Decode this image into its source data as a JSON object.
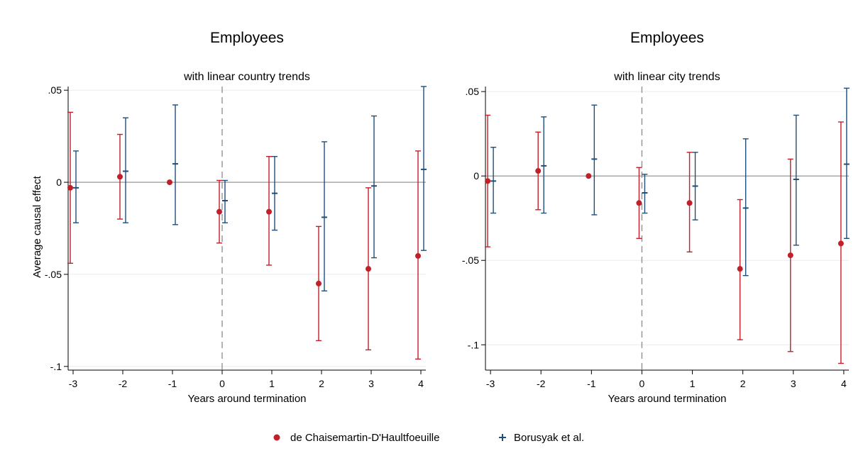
{
  "legend": {
    "position": "bottom",
    "entries": [
      {
        "label": "de Chaisemartin-D'Haultfoeuille",
        "color": "#c0202a",
        "marker": "dot"
      },
      {
        "label": "Borusyak et al.",
        "color": "#1f4e79",
        "marker": "plus"
      }
    ]
  },
  "chart_data": [
    {
      "type": "scatter",
      "title": "Employees",
      "subtitle": "with linear country trends",
      "xlabel": "Years around termination",
      "ylabel": "Average causal effect",
      "x": [
        -3,
        -2,
        -1,
        0,
        1,
        2,
        3,
        4
      ],
      "xlim": [
        -3.1,
        4.1
      ],
      "ylim": [
        -0.102,
        0.052
      ],
      "yticks": [
        {
          "v": 0.05,
          "label": ".05"
        },
        {
          "v": 0,
          "label": "0"
        },
        {
          "v": -0.05,
          "label": "-.05"
        },
        {
          "v": -0.1,
          "label": "-.1"
        }
      ],
      "xticks": [
        {
          "v": -3,
          "label": "-3"
        },
        {
          "v": -2,
          "label": "-2"
        },
        {
          "v": -1,
          "label": "-1"
        },
        {
          "v": 0,
          "label": "0"
        },
        {
          "v": 1,
          "label": "1"
        },
        {
          "v": 2,
          "label": "2"
        },
        {
          "v": 3,
          "label": "3"
        },
        {
          "v": 4,
          "label": "4"
        }
      ],
      "grid": true,
      "vline_x": 0,
      "series": [
        {
          "name": "de Chaisemartin-D'Haultfoeuille",
          "color": "#c0202a",
          "values": [
            -0.003,
            0.003,
            0.0,
            -0.016,
            -0.016,
            -0.055,
            -0.047,
            -0.04
          ],
          "lower": [
            -0.044,
            -0.02,
            null,
            -0.033,
            -0.045,
            -0.086,
            -0.091,
            -0.096
          ],
          "upper": [
            0.038,
            0.026,
            null,
            0.001,
            0.014,
            -0.024,
            -0.003,
            0.017
          ]
        },
        {
          "name": "Borusyak et al.",
          "color": "#1f4e79",
          "values": [
            -0.003,
            0.006,
            0.01,
            -0.01,
            -0.006,
            -0.019,
            -0.002,
            0.007
          ],
          "lower": [
            -0.022,
            -0.022,
            -0.023,
            -0.022,
            -0.026,
            -0.059,
            -0.041,
            -0.037
          ],
          "upper": [
            0.017,
            0.035,
            0.042,
            0.001,
            0.014,
            0.022,
            0.036,
            0.052
          ]
        }
      ]
    },
    {
      "type": "scatter",
      "title": "Employees",
      "subtitle": "with linear city trends",
      "xlabel": "Years around termination",
      "ylabel": "",
      "x": [
        -3,
        -2,
        -1,
        0,
        1,
        2,
        3,
        4
      ],
      "xlim": [
        -3.1,
        4.1
      ],
      "ylim": [
        -0.115,
        0.053
      ],
      "yticks": [
        {
          "v": 0.05,
          "label": ".05"
        },
        {
          "v": 0,
          "label": "0"
        },
        {
          "v": -0.05,
          "label": "-.05"
        },
        {
          "v": -0.1,
          "label": "-.1"
        }
      ],
      "xticks": [
        {
          "v": -3,
          "label": "-3"
        },
        {
          "v": -2,
          "label": "-2"
        },
        {
          "v": -1,
          "label": "-1"
        },
        {
          "v": 0,
          "label": "0"
        },
        {
          "v": 1,
          "label": "1"
        },
        {
          "v": 2,
          "label": "2"
        },
        {
          "v": 3,
          "label": "3"
        },
        {
          "v": 4,
          "label": "4"
        }
      ],
      "grid": true,
      "vline_x": 0,
      "series": [
        {
          "name": "de Chaisemartin-D'Haultfoeuille",
          "color": "#c0202a",
          "values": [
            -0.003,
            0.003,
            0.0,
            -0.016,
            -0.016,
            -0.055,
            -0.047,
            -0.04
          ],
          "lower": [
            -0.042,
            -0.02,
            null,
            -0.037,
            -0.045,
            -0.097,
            -0.104,
            -0.111
          ],
          "upper": [
            0.036,
            0.026,
            null,
            0.005,
            0.014,
            -0.014,
            0.01,
            0.032
          ]
        },
        {
          "name": "Borusyak et al.",
          "color": "#1f4e79",
          "values": [
            -0.003,
            0.006,
            0.01,
            -0.01,
            -0.006,
            -0.019,
            -0.002,
            0.007
          ],
          "lower": [
            -0.022,
            -0.022,
            -0.023,
            -0.022,
            -0.026,
            -0.059,
            -0.041,
            -0.037
          ],
          "upper": [
            0.017,
            0.035,
            0.042,
            0.001,
            0.014,
            0.022,
            0.036,
            0.052
          ]
        }
      ]
    }
  ]
}
